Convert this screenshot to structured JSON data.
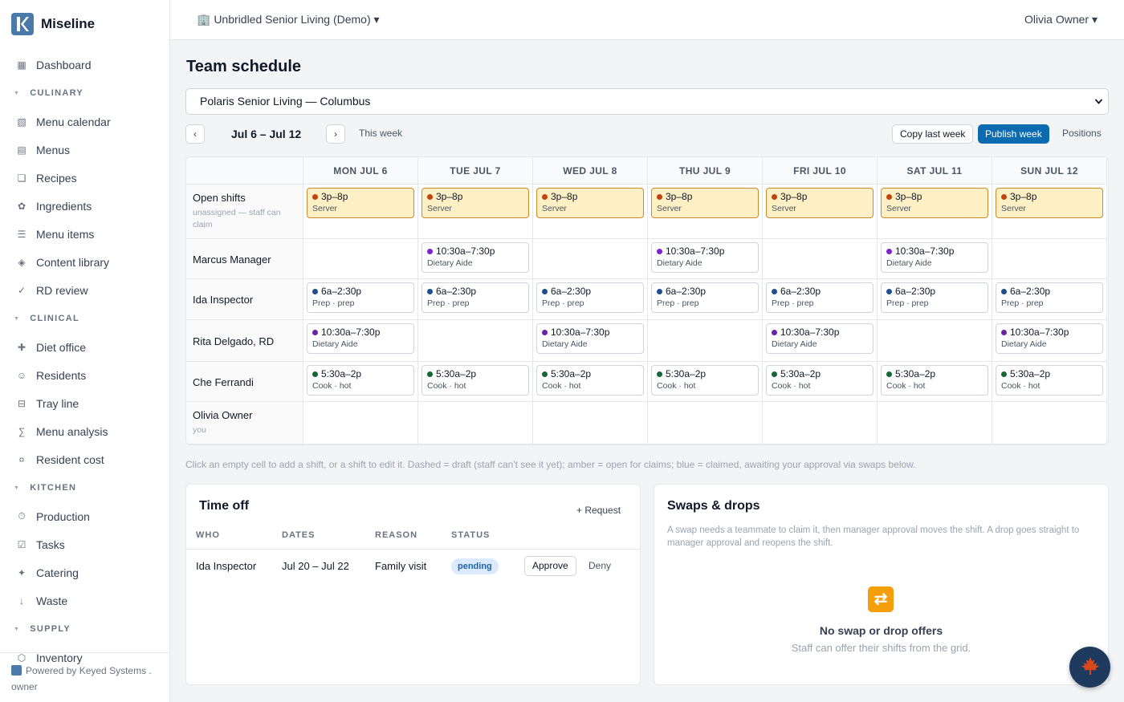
{
  "app": {
    "name": "Miseline"
  },
  "sidebar": {
    "dashboard": "Dashboard",
    "culinary_label": "CULINARY",
    "culinary": [
      "Menu calendar",
      "Menus",
      "Recipes",
      "Ingredients",
      "Menu items",
      "Content library",
      "RD review"
    ],
    "clinical_label": "CLINICAL",
    "clinical": [
      "Diet office",
      "Residents",
      "Tray line",
      "Menu analysis",
      "Resident cost"
    ],
    "kitchen_label": "KITCHEN",
    "kitchen": [
      "Production",
      "Tasks",
      "Catering",
      "Waste"
    ],
    "supply_label": "SUPPLY",
    "supply": [
      "Inventory"
    ],
    "footer_powered": "Powered by Keyed Systems .",
    "footer_role": "owner"
  },
  "topbar": {
    "org": "🏢 Unbridled Senior Living (Demo) ▾",
    "user": "Olivia Owner ▾"
  },
  "page": {
    "title": "Team schedule",
    "location": "Polaris Senior Living — Columbus",
    "prev": "‹",
    "next": "›",
    "week_range": "Jul 6 – Jul 12",
    "this_week": "This week",
    "copy_last_week": "Copy last week",
    "publish_week": "Publish week",
    "positions": "Positions",
    "hint": "Click an empty cell to add a shift, or a shift to edit it. Dashed = draft (staff can't see it yet); amber = open for claims; blue = claimed, awaiting your approval via swaps below."
  },
  "schedule": {
    "days": [
      "MON JUL 6",
      "TUE JUL 7",
      "WED JUL 8",
      "THU JUL 9",
      "FRI JUL 10",
      "SAT JUL 11",
      "SUN JUL 12"
    ],
    "rows": [
      {
        "name": "Open shifts",
        "sub": "unassigned — staff can claim",
        "open": true,
        "dot": "#c2410c",
        "shifts": [
          [
            "3p–8p",
            "Server"
          ],
          [
            "3p–8p",
            "Server"
          ],
          [
            "3p–8p",
            "Server"
          ],
          [
            "3p–8p",
            "Server"
          ],
          [
            "3p–8p",
            "Server"
          ],
          [
            "3p–8p",
            "Server"
          ],
          [
            "3p–8p",
            "Server"
          ]
        ]
      },
      {
        "name": "Marcus Manager",
        "sub": "",
        "dot": "#7e22ce",
        "shifts": [
          null,
          [
            "10:30a–7:30p",
            "Dietary Aide"
          ],
          null,
          [
            "10:30a–7:30p",
            "Dietary Aide"
          ],
          null,
          [
            "10:30a–7:30p",
            "Dietary Aide"
          ],
          null
        ]
      },
      {
        "name": "Ida Inspector",
        "sub": "",
        "dot": "#1e4e8c",
        "shifts": [
          [
            "6a–2:30p",
            "Prep · prep"
          ],
          [
            "6a–2:30p",
            "Prep · prep"
          ],
          [
            "6a–2:30p",
            "Prep · prep"
          ],
          [
            "6a–2:30p",
            "Prep · prep"
          ],
          [
            "6a–2:30p",
            "Prep · prep"
          ],
          [
            "6a–2:30p",
            "Prep · prep"
          ],
          [
            "6a–2:30p",
            "Prep · prep"
          ]
        ]
      },
      {
        "name": "Rita Delgado, RD",
        "sub": "",
        "dot": "#6b21a8",
        "shifts": [
          [
            "10:30a–7:30p",
            "Dietary Aide"
          ],
          null,
          [
            "10:30a–7:30p",
            "Dietary Aide"
          ],
          null,
          [
            "10:30a–7:30p",
            "Dietary Aide"
          ],
          null,
          [
            "10:30a–7:30p",
            "Dietary Aide"
          ]
        ]
      },
      {
        "name": "Che Ferrandi",
        "sub": "",
        "dot": "#166534",
        "shifts": [
          [
            "5:30a–2p",
            "Cook · hot"
          ],
          [
            "5:30a–2p",
            "Cook · hot"
          ],
          [
            "5:30a–2p",
            "Cook · hot"
          ],
          [
            "5:30a–2p",
            "Cook · hot"
          ],
          [
            "5:30a–2p",
            "Cook · hot"
          ],
          [
            "5:30a–2p",
            "Cook · hot"
          ],
          [
            "5:30a–2p",
            "Cook · hot"
          ]
        ]
      },
      {
        "name": "Olivia Owner",
        "sub": "you",
        "dot": "#166534",
        "shifts": [
          null,
          null,
          null,
          null,
          null,
          null,
          null
        ]
      }
    ]
  },
  "time_off": {
    "title": "Time off",
    "request": "+ Request",
    "headers": {
      "who": "WHO",
      "dates": "DATES",
      "reason": "REASON",
      "status": "STATUS"
    },
    "row": {
      "who": "Ida Inspector",
      "dates": "Jul 20 – Jul 22",
      "reason": "Family visit",
      "status": "pending",
      "approve": "Approve",
      "deny": "Deny"
    }
  },
  "swaps": {
    "title": "Swaps & drops",
    "description": "A swap needs a teammate to claim it, then manager approval moves the shift. A drop goes straight to manager approval and reopens the shift.",
    "empty_title": "No swap or drop offers",
    "empty_sub": "Staff can offer their shifts from the grid."
  },
  "colors": {
    "accent": "#0b6bb0",
    "open_shift_bg": "#fdf0c4",
    "open_shift_border": "#c98b2c"
  }
}
